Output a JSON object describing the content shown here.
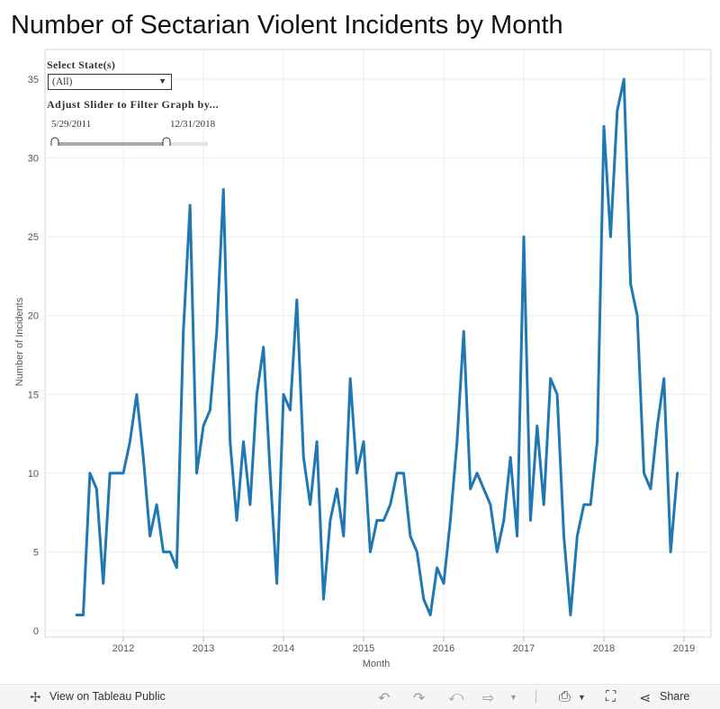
{
  "title": "Number of Sectarian Violent Incidents by Month",
  "filters": {
    "state_label": "Select State(s)",
    "state_value": "(All)",
    "slider_label": "Adjust Slider to Filter Graph by...",
    "slider_start": "5/29/2011",
    "slider_end": "12/31/2018"
  },
  "footer": {
    "view_label": "View on Tableau Public",
    "share_label": "Share"
  },
  "chart_data": {
    "type": "line",
    "title": "",
    "xlabel": "Month",
    "ylabel": "Number of Incidents",
    "ylim": [
      0,
      35
    ],
    "yticks": [
      "0",
      "5",
      "10",
      "15",
      "20",
      "25",
      "30",
      "35"
    ],
    "xticks": [
      "2012",
      "2013",
      "2014",
      "2015",
      "2016",
      "2017",
      "2018",
      "2019"
    ],
    "grid": true,
    "color": "#1f77b4",
    "start_month": "2011-06",
    "values": [
      1,
      1,
      10,
      9,
      3,
      10,
      10,
      10,
      12,
      15,
      11,
      6,
      8,
      5,
      5,
      4,
      19,
      27,
      10,
      13,
      14,
      19,
      28,
      12,
      7,
      12,
      8,
      15,
      18,
      10,
      3,
      15,
      14,
      21,
      11,
      8,
      12,
      2,
      7,
      9,
      6,
      16,
      10,
      12,
      5,
      7,
      7,
      8,
      10,
      10,
      6,
      5,
      2,
      1,
      4,
      3,
      7,
      12,
      19,
      9,
      10,
      9,
      8,
      5,
      7,
      11,
      6,
      25,
      7,
      13,
      8,
      16,
      15,
      6,
      1,
      6,
      8,
      8,
      12,
      32,
      25,
      33,
      35,
      22,
      20,
      10,
      9,
      13,
      16,
      5,
      10
    ]
  }
}
